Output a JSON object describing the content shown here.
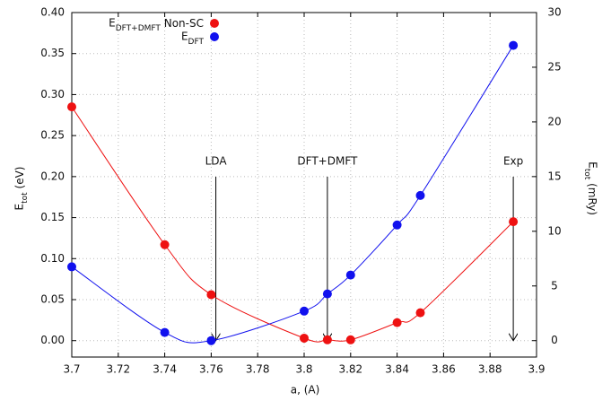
{
  "chart_data": {
    "type": "scatter",
    "x": [
      3.7,
      3.74,
      3.76,
      3.8,
      3.81,
      3.82,
      3.84,
      3.85,
      3.89
    ],
    "series": [
      {
        "name": "EDFT+DMFT Non-SC",
        "color": "#ee1111",
        "values": [
          0.285,
          0.117,
          0.056,
          0.003,
          0.001,
          0.001,
          0.022,
          0.034,
          0.145
        ]
      },
      {
        "name": "EDFT",
        "color": "#1111ee",
        "values": [
          0.09,
          0.01,
          0.0,
          0.036,
          0.057,
          0.08,
          0.141,
          0.177,
          0.36
        ]
      }
    ],
    "xlabel": "a, (A)",
    "ylabel": "Etot (eV)",
    "y2label": "Etot (mRy)",
    "xlim": [
      3.7,
      3.9
    ],
    "xticks": [
      3.7,
      3.72,
      3.74,
      3.76,
      3.78,
      3.8,
      3.82,
      3.84,
      3.86,
      3.88,
      3.9
    ],
    "ylim": [
      -0.02,
      0.4
    ],
    "yticks": [
      {
        "value": 0,
        "label": "0.00"
      },
      {
        "value": 0.05,
        "label": "0.05"
      },
      {
        "value": 0.1,
        "label": "0.10"
      },
      {
        "value": 0.15,
        "label": "0.15"
      },
      {
        "value": 0.2,
        "label": "0.20"
      },
      {
        "value": 0.25,
        "label": "0.25"
      },
      {
        "value": 0.3,
        "label": "0.30"
      },
      {
        "value": 0.35,
        "label": "0.35"
      },
      {
        "value": 0.4,
        "label": "0.40"
      }
    ],
    "y2lim": [
      -1.5,
      30
    ],
    "y2ticks": [
      0,
      5,
      10,
      15,
      20,
      25,
      30
    ],
    "annotations": [
      {
        "text": "LDA",
        "x": 3.762,
        "y": 0
      },
      {
        "text": "DFT+DMFT",
        "x": 3.81,
        "y": 0
      },
      {
        "text": "Exp",
        "x": 3.89,
        "y": 0
      }
    ],
    "grid": true,
    "legend": "top-left"
  }
}
